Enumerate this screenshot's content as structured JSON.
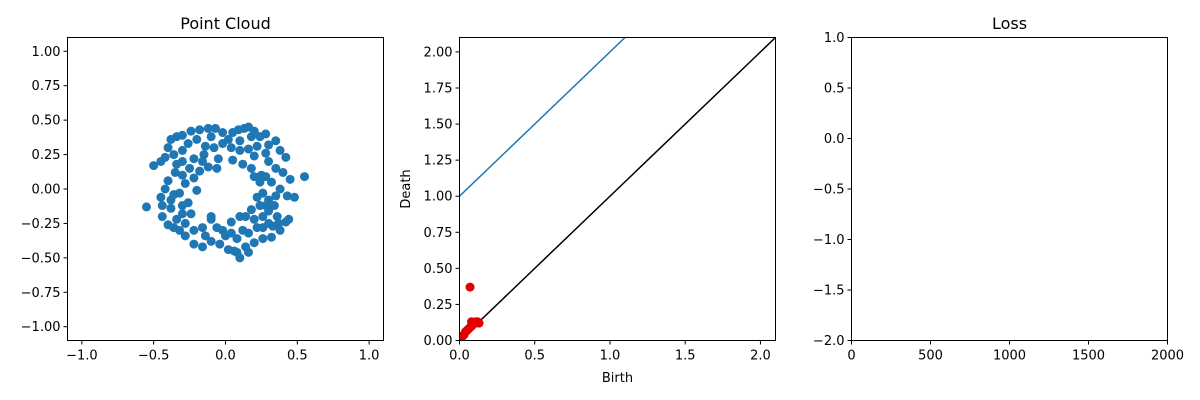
{
  "chart_data": [
    {
      "type": "scatter",
      "title": "Point Cloud",
      "xlabel": "",
      "ylabel": "",
      "xlim": [
        -1.1,
        1.1
      ],
      "ylim": [
        -1.1,
        1.1
      ],
      "xticks": [
        "−1.0",
        "−0.5",
        "0.0",
        "0.5",
        "1.0"
      ],
      "yticks": [
        "−1.00",
        "−0.75",
        "−0.50",
        "−0.25",
        "0.00",
        "0.25",
        "0.50",
        "0.75",
        "1.00"
      ],
      "grid": false,
      "series": [
        {
          "color": "#1f77b4",
          "points": [
            [
              0.13,
              0.44
            ],
            [
              0.16,
              0.45
            ],
            [
              0.09,
              0.43
            ],
            [
              0.05,
              0.41
            ],
            [
              -0.02,
              0.41
            ],
            [
              -0.07,
              0.44
            ],
            [
              -0.12,
              0.44
            ],
            [
              -0.18,
              0.43
            ],
            [
              -0.24,
              0.42
            ],
            [
              -0.3,
              0.39
            ],
            [
              -0.34,
              0.38
            ],
            [
              -0.38,
              0.36
            ],
            [
              0.2,
              0.42
            ],
            [
              0.24,
              0.38
            ],
            [
              0.28,
              0.4
            ],
            [
              0.35,
              0.35
            ],
            [
              0.38,
              0.28
            ],
            [
              0.42,
              0.23
            ],
            [
              0.3,
              0.32
            ],
            [
              -0.4,
              0.3
            ],
            [
              -0.45,
              0.2
            ],
            [
              -0.5,
              0.17
            ],
            [
              -0.42,
              0.23
            ],
            [
              -0.36,
              0.25
            ],
            [
              -0.3,
              0.28
            ],
            [
              -0.26,
              0.33
            ],
            [
              -0.2,
              0.36
            ],
            [
              -0.14,
              0.31
            ],
            [
              -0.08,
              0.3
            ],
            [
              -0.02,
              0.33
            ],
            [
              0.04,
              0.3
            ],
            [
              0.1,
              0.28
            ],
            [
              0.16,
              0.29
            ],
            [
              0.22,
              0.31
            ],
            [
              0.1,
              0.35
            ],
            [
              0.18,
              0.38
            ],
            [
              0.02,
              0.36
            ],
            [
              -0.1,
              0.38
            ],
            [
              -0.15,
              0.25
            ],
            [
              -0.22,
              0.22
            ],
            [
              0.3,
              0.2
            ],
            [
              0.35,
              0.15
            ],
            [
              0.4,
              0.12
            ],
            [
              0.45,
              0.07
            ],
            [
              0.48,
              -0.06
            ],
            [
              0.55,
              0.09
            ],
            [
              0.43,
              -0.05
            ],
            [
              0.38,
              0.0
            ],
            [
              0.35,
              -0.05
            ],
            [
              0.32,
              0.05
            ],
            [
              0.28,
              0.09
            ],
            [
              0.26,
              -0.03
            ],
            [
              0.3,
              -0.08
            ],
            [
              0.34,
              -0.12
            ],
            [
              0.25,
              0.1
            ],
            [
              0.2,
              0.09
            ],
            [
              -0.3,
              0.2
            ],
            [
              -0.35,
              0.12
            ],
            [
              -0.4,
              0.06
            ],
            [
              -0.42,
              0.0
            ],
            [
              -0.45,
              -0.06
            ],
            [
              -0.55,
              -0.13
            ],
            [
              -0.44,
              -0.12
            ],
            [
              -0.38,
              -0.08
            ],
            [
              -0.32,
              -0.03
            ],
            [
              -0.28,
              0.04
            ],
            [
              -0.22,
              0.08
            ],
            [
              -0.18,
              0.13
            ],
            [
              -0.2,
              -0.01
            ],
            [
              -0.26,
              -0.1
            ],
            [
              -0.3,
              -0.18
            ],
            [
              -0.34,
              -0.22
            ],
            [
              -0.4,
              -0.26
            ],
            [
              -0.44,
              -0.2
            ],
            [
              -0.38,
              -0.14
            ],
            [
              -0.28,
              -0.25
            ],
            [
              -0.22,
              -0.3
            ],
            [
              -0.16,
              -0.28
            ],
            [
              -0.1,
              -0.22
            ],
            [
              -0.06,
              -0.28
            ],
            [
              -0.02,
              -0.3
            ],
            [
              0.04,
              -0.24
            ],
            [
              0.1,
              -0.2
            ],
            [
              0.14,
              -0.2
            ],
            [
              0.2,
              -0.22
            ],
            [
              0.26,
              -0.2
            ],
            [
              0.3,
              -0.25
            ],
            [
              0.36,
              -0.2
            ],
            [
              0.42,
              -0.24
            ],
            [
              0.44,
              -0.22
            ],
            [
              0.38,
              -0.3
            ],
            [
              0.32,
              -0.35
            ],
            [
              0.26,
              -0.36
            ],
            [
              0.2,
              -0.39
            ],
            [
              0.14,
              -0.42
            ],
            [
              0.08,
              -0.46
            ],
            [
              0.02,
              -0.44
            ],
            [
              -0.04,
              -0.4
            ],
            [
              -0.1,
              -0.38
            ],
            [
              -0.16,
              -0.42
            ],
            [
              -0.22,
              -0.4
            ],
            [
              -0.28,
              -0.34
            ],
            [
              -0.32,
              -0.3
            ],
            [
              0.16,
              -0.46
            ],
            [
              0.1,
              -0.5
            ],
            [
              0.06,
              -0.45
            ],
            [
              0.22,
              -0.28
            ],
            [
              0.16,
              -0.32
            ],
            [
              0.08,
              -0.36
            ],
            [
              0.0,
              -0.34
            ],
            [
              0.26,
              -0.28
            ],
            [
              0.3,
              -0.16
            ],
            [
              0.24,
              -0.12
            ],
            [
              0.18,
              -0.15
            ],
            [
              -0.1,
              -0.2
            ],
            [
              -0.14,
              -0.34
            ],
            [
              -0.36,
              -0.28
            ],
            [
              0.05,
              0.21
            ],
            [
              -0.05,
              0.22
            ],
            [
              0.12,
              0.18
            ],
            [
              0.18,
              0.15
            ],
            [
              0.24,
              0.05
            ],
            [
              0.22,
              -0.06
            ],
            [
              0.28,
              -0.12
            ],
            [
              0.12,
              -0.3
            ],
            [
              0.04,
              -0.32
            ],
            [
              -0.06,
              0.15
            ],
            [
              -0.12,
              0.16
            ],
            [
              -0.16,
              0.2
            ],
            [
              -0.34,
              0.18
            ],
            [
              -0.3,
              0.1
            ],
            [
              -0.25,
              0.15
            ],
            [
              -0.36,
              -0.04
            ],
            [
              -0.3,
              -0.12
            ],
            [
              -0.24,
              -0.18
            ],
            [
              0.33,
              -0.27
            ],
            [
              0.37,
              -0.25
            ],
            [
              0.2,
              0.24
            ],
            [
              0.28,
              0.26
            ]
          ]
        }
      ]
    },
    {
      "type": "scatter",
      "title": "",
      "xlabel": "Birth",
      "ylabel": "Death",
      "xlim": [
        0,
        2.1
      ],
      "ylim": [
        0,
        2.1
      ],
      "xticks": [
        "0.0",
        "0.5",
        "1.0",
        "1.5",
        "2.0"
      ],
      "yticks": [
        "0.00",
        "0.25",
        "0.50",
        "0.75",
        "1.00",
        "1.25",
        "1.50",
        "1.75",
        "2.00"
      ],
      "grid": false,
      "lines": [
        {
          "color": "#1f77b4",
          "points": [
            [
              0,
              1.0
            ],
            [
              1.1,
              2.1
            ]
          ]
        },
        {
          "color": "#000000",
          "points": [
            [
              0,
              0
            ],
            [
              2.1,
              2.1
            ]
          ]
        }
      ],
      "series": [
        {
          "color": "#e00000",
          "points": [
            [
              0.07,
              0.37
            ],
            [
              0.01,
              0.01
            ],
            [
              0.02,
              0.03
            ],
            [
              0.03,
              0.04
            ],
            [
              0.04,
              0.06
            ],
            [
              0.05,
              0.07
            ],
            [
              0.06,
              0.08
            ],
            [
              0.07,
              0.09
            ],
            [
              0.08,
              0.1
            ],
            [
              0.09,
              0.11
            ],
            [
              0.1,
              0.12
            ],
            [
              0.12,
              0.13
            ],
            [
              0.13,
              0.12
            ],
            [
              0.08,
              0.13
            ],
            [
              0.11,
              0.13
            ]
          ]
        }
      ]
    },
    {
      "type": "line",
      "title": "Loss",
      "xlabel": "",
      "ylabel": "",
      "xlim": [
        0,
        2000
      ],
      "ylim": [
        -2.0,
        1.0
      ],
      "xticks": [
        "0",
        "500",
        "1000",
        "1500",
        "2000"
      ],
      "yticks": [
        "−2.0",
        "−1.5",
        "−1.0",
        "−0.5",
        "0.0",
        "0.5",
        "1.0"
      ],
      "grid": false,
      "series": []
    }
  ]
}
